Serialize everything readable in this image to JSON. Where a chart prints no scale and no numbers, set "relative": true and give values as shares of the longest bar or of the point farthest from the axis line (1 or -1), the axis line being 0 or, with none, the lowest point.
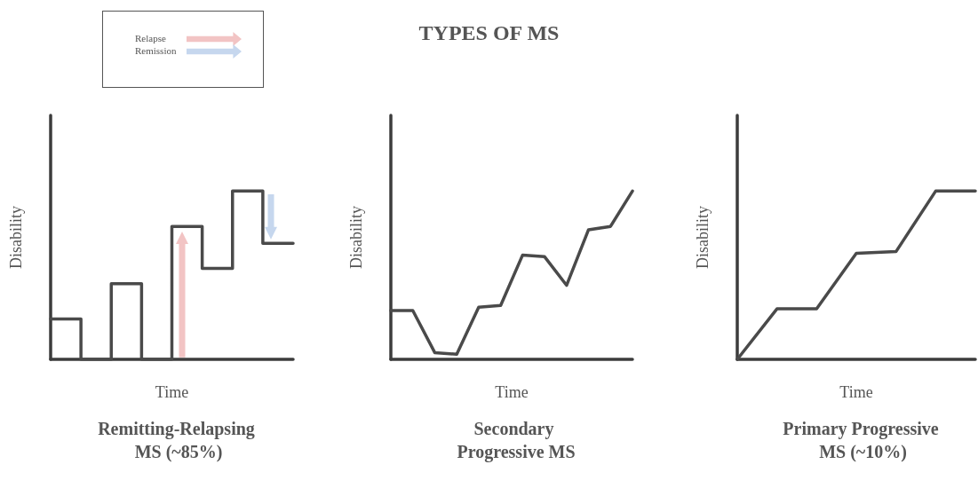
{
  "chart_data": [
    {
      "type": "other",
      "title": "TYPES OF MS",
      "annotations": [
        "Relapse",
        "Remission"
      ]
    },
    {
      "type": "step",
      "title": "Remitting-Relapsing MS (~85%)",
      "xlabel": "Time",
      "ylabel": "Disability",
      "categories": [
        null,
        null,
        null,
        null,
        null,
        null,
        null,
        null,
        null
      ],
      "values": [
        0.24,
        0,
        0.45,
        0,
        0.79,
        0.54,
        1,
        0.69,
        0.69
      ],
      "color": "#4a4a4a",
      "relative": true,
      "marker": "none",
      "line_style": "solid"
    },
    {
      "type": "line",
      "title": "Secondary Progressive MS",
      "xlabel": "Time",
      "ylabel": "Disability",
      "categories": [
        null,
        null,
        null,
        null,
        null,
        null,
        null,
        null,
        null,
        null,
        null,
        null
      ],
      "values": [
        0.29,
        0.29,
        0.04,
        0.03,
        0.31,
        0.32,
        0.62,
        0.61,
        0.44,
        0.77,
        0.79,
        1
      ],
      "color": "#4a4a4a",
      "relative": true,
      "marker": "none",
      "line_style": "solid"
    },
    {
      "type": "line",
      "title": "Primary Progressive MS (~10%)",
      "xlabel": "Time",
      "ylabel": "Disability",
      "categories": [
        null,
        null,
        null,
        null,
        null,
        null,
        null
      ],
      "values": [
        0,
        0.3,
        0.3,
        0.63,
        0.64,
        1,
        1
      ],
      "color": "#4a4a4a",
      "relative": true,
      "marker": "none",
      "line_style": "solid"
    }
  ]
}
